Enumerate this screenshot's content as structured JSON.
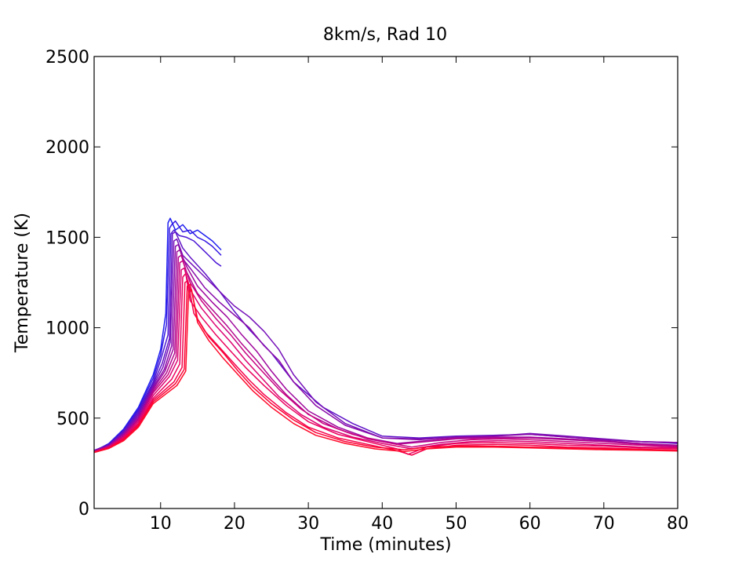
{
  "chart_data": {
    "type": "line",
    "title": "8km/s, Rad 10",
    "xlabel": "Time (minutes)",
    "ylabel": "Temperature (K)",
    "xlim": [
      1,
      80
    ],
    "ylim": [
      0,
      2500
    ],
    "xticks": [
      10,
      20,
      30,
      40,
      50,
      60,
      70,
      80
    ],
    "yticks": [
      0,
      500,
      1000,
      1500,
      2000,
      2500
    ],
    "xtick_labels": [
      "10",
      "20",
      "30",
      "40",
      "50",
      "60",
      "70",
      "80"
    ],
    "ytick_labels": [
      "0",
      "500",
      "1000",
      "1500",
      "2000",
      "2500"
    ],
    "grid": false,
    "legend": "none",
    "color_gradient": [
      "#1a1aff",
      "#ff0a2a"
    ],
    "series": [
      {
        "color": "#1f1ff0",
        "x": [
          1,
          3,
          5,
          7,
          9,
          10,
          10.7,
          11,
          11.3,
          12,
          13,
          14,
          15,
          16,
          17,
          18.2
        ],
        "y": [
          315,
          360,
          440,
          560,
          740,
          880,
          1080,
          1580,
          1605,
          1540,
          1570,
          1520,
          1540,
          1510,
          1480,
          1430
        ]
      },
      {
        "color": "#3419e2",
        "x": [
          1,
          3,
          5,
          7,
          9,
          10,
          10.8,
          11.2,
          11.5,
          12,
          13,
          14,
          15,
          16,
          17,
          18.2
        ],
        "y": [
          318,
          358,
          435,
          550,
          720,
          850,
          1020,
          1550,
          1570,
          1590,
          1530,
          1540,
          1500,
          1480,
          1450,
          1400
        ]
      },
      {
        "color": "#4a16d4",
        "x": [
          1,
          3,
          5,
          7,
          9,
          10,
          11,
          11.4,
          11.8,
          12.5,
          13.5,
          14.5,
          15.5,
          16.5,
          17.5,
          18.2
        ],
        "y": [
          320,
          355,
          430,
          540,
          700,
          820,
          960,
          1520,
          1540,
          1510,
          1500,
          1480,
          1440,
          1400,
          1360,
          1340
        ]
      },
      {
        "color": "#5f12c6",
        "x": [
          1,
          3,
          5,
          7,
          9,
          10.2,
          11.2,
          11.6,
          12,
          13,
          14,
          16,
          18,
          20,
          22,
          25,
          28,
          32,
          36,
          40,
          45,
          50,
          55,
          60,
          65,
          70,
          75,
          80
        ],
        "y": [
          322,
          352,
          425,
          530,
          690,
          800,
          940,
          1520,
          1530,
          1440,
          1390,
          1300,
          1200,
          1090,
          990,
          860,
          700,
          560,
          470,
          400,
          390,
          400,
          405,
          410,
          395,
          380,
          370,
          360
        ]
      },
      {
        "color": "#740fb8",
        "x": [
          1,
          3,
          5,
          7,
          9,
          10.3,
          11.3,
          11.8,
          12.2,
          13,
          14,
          16,
          18,
          20,
          22,
          24,
          26,
          28,
          31,
          35,
          40,
          45,
          50,
          55,
          60,
          65,
          70,
          75,
          80
        ],
        "y": [
          320,
          350,
          420,
          520,
          680,
          780,
          920,
          1480,
          1490,
          1400,
          1360,
          1280,
          1200,
          1120,
          1060,
          980,
          880,
          740,
          590,
          470,
          390,
          385,
          395,
          400,
          415,
          400,
          385,
          370,
          365
        ]
      },
      {
        "color": "#890baa",
        "x": [
          1,
          3,
          5,
          7,
          9,
          10.5,
          11.5,
          12,
          12.4,
          13,
          14,
          16,
          18,
          20,
          22,
          24,
          26,
          28,
          31,
          35,
          40,
          45,
          50,
          55,
          60,
          65,
          70,
          75,
          80
        ],
        "y": [
          318,
          348,
          415,
          510,
          670,
          770,
          900,
          1450,
          1460,
          1380,
          1330,
          1220,
          1140,
          1070,
          1000,
          900,
          820,
          700,
          570,
          460,
          390,
          380,
          395,
          400,
          410,
          395,
          380,
          370,
          365
        ]
      },
      {
        "color": "#9e089c",
        "x": [
          1,
          3,
          5,
          7,
          9,
          10.6,
          11.7,
          12.2,
          12.6,
          13.5,
          15,
          17,
          19,
          21,
          23,
          25,
          27,
          30,
          34,
          38,
          42,
          46,
          50,
          55,
          60,
          65,
          70,
          75,
          80
        ],
        "y": [
          316,
          346,
          410,
          500,
          660,
          760,
          880,
          1420,
          1430,
          1340,
          1230,
          1140,
          1060,
          960,
          870,
          760,
          660,
          540,
          450,
          390,
          360,
          375,
          390,
          395,
          395,
          385,
          375,
          360,
          350
        ]
      },
      {
        "color": "#b3068e",
        "x": [
          1,
          3,
          5,
          7,
          9,
          10.8,
          11.9,
          12.4,
          12.8,
          13.5,
          15,
          17,
          19,
          21,
          23,
          25,
          27,
          30,
          34,
          38,
          42,
          46,
          50,
          55,
          60,
          65,
          70,
          75,
          80
        ],
        "y": [
          315,
          344,
          405,
          495,
          650,
          750,
          860,
          1390,
          1400,
          1310,
          1190,
          1100,
          1010,
          910,
          820,
          720,
          630,
          520,
          440,
          385,
          355,
          370,
          385,
          390,
          390,
          380,
          370,
          355,
          345
        ]
      },
      {
        "color": "#c80480",
        "x": [
          1,
          3,
          5,
          7,
          9,
          11,
          12.1,
          12.6,
          13,
          14,
          15.5,
          17.5,
          19.5,
          21.5,
          23.5,
          26,
          29,
          32,
          36,
          40,
          44,
          48,
          52,
          56,
          60,
          65,
          70,
          75,
          80
        ],
        "y": [
          314,
          342,
          400,
          490,
          640,
          740,
          840,
          1360,
          1370,
          1250,
          1150,
          1050,
          960,
          860,
          770,
          660,
          550,
          470,
          410,
          370,
          340,
          365,
          380,
          385,
          380,
          370,
          360,
          350,
          340
        ]
      },
      {
        "color": "#dc0372",
        "x": [
          1,
          3,
          5,
          7,
          9,
          11.2,
          12.3,
          12.8,
          13.2,
          14,
          15.5,
          17.5,
          19.5,
          21.5,
          23.5,
          26,
          29,
          32,
          36,
          40,
          44,
          48,
          52,
          56,
          60,
          65,
          70,
          75,
          80
        ],
        "y": [
          313,
          340,
          395,
          480,
          625,
          730,
          820,
          1320,
          1330,
          1210,
          1110,
          1010,
          920,
          820,
          730,
          620,
          520,
          450,
          395,
          360,
          330,
          355,
          370,
          375,
          370,
          360,
          350,
          340,
          335
        ]
      },
      {
        "color": "#ea025e",
        "x": [
          1,
          3,
          5,
          7,
          9,
          11.5,
          12.6,
          13,
          13.4,
          14,
          15.5,
          17.5,
          19.5,
          21.5,
          24,
          27,
          30,
          34,
          38,
          42,
          43.5,
          46,
          50,
          55,
          60,
          65,
          70,
          75,
          80
        ],
        "y": [
          312,
          338,
          390,
          470,
          610,
          715,
          800,
          1280,
          1300,
          1150,
          1060,
          960,
          870,
          780,
          680,
          570,
          480,
          410,
          370,
          330,
          300,
          340,
          360,
          365,
          360,
          350,
          345,
          335,
          330
        ]
      },
      {
        "color": "#f4024a",
        "x": [
          1,
          3,
          5,
          7,
          9,
          11.8,
          12.9,
          13.3,
          13.7,
          14.5,
          16,
          18,
          20,
          22,
          24,
          27,
          30,
          34,
          38,
          42,
          44,
          46,
          50,
          55,
          60,
          65,
          70,
          75,
          80
        ],
        "y": [
          312,
          336,
          385,
          465,
          600,
          700,
          780,
          1250,
          1260,
          1080,
          980,
          890,
          800,
          710,
          630,
          530,
          450,
          390,
          355,
          320,
          295,
          330,
          350,
          355,
          350,
          340,
          335,
          328,
          322
        ]
      },
      {
        "color": "#fa0236",
        "x": [
          1,
          3,
          5,
          7,
          9,
          12,
          13.2,
          13.6,
          14,
          15,
          16.5,
          18.5,
          20.5,
          22.5,
          25,
          28,
          31,
          35,
          39,
          43,
          46,
          50,
          55,
          60,
          65,
          70,
          75,
          80
        ],
        "y": [
          311,
          334,
          380,
          458,
          590,
          690,
          770,
          1230,
          1240,
          1050,
          950,
          860,
          760,
          670,
          580,
          490,
          420,
          370,
          340,
          325,
          340,
          345,
          345,
          340,
          335,
          330,
          325,
          320
        ]
      },
      {
        "color": "#ff0a2a",
        "x": [
          1,
          3,
          5,
          7,
          9,
          12.2,
          13.4,
          13.8,
          14.2,
          15,
          16.5,
          18.5,
          20.5,
          22.5,
          25,
          28,
          31,
          35,
          39,
          43,
          46,
          50,
          55,
          60,
          65,
          70,
          75,
          80
        ],
        "y": [
          310,
          332,
          375,
          450,
          580,
          680,
          760,
          1200,
          1210,
          1030,
          930,
          830,
          740,
          650,
          560,
          470,
          405,
          360,
          330,
          315,
          330,
          340,
          340,
          335,
          330,
          325,
          322,
          318
        ]
      }
    ]
  }
}
